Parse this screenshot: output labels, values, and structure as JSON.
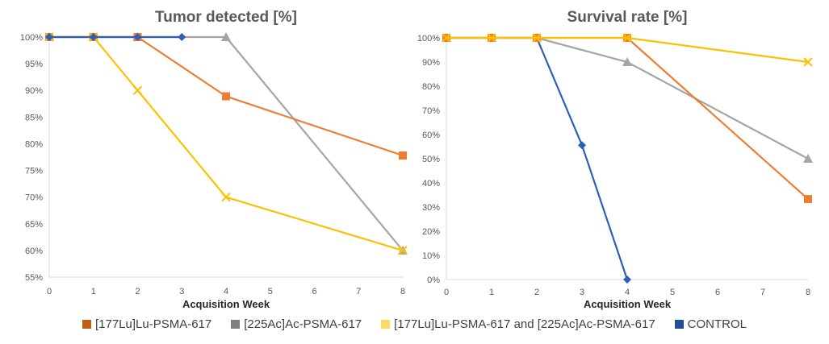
{
  "chart_data": [
    {
      "type": "line",
      "title": "Tumor detected [%]",
      "xlabel": "Acquisition Week",
      "ylabel": "",
      "xlim": [
        0,
        8
      ],
      "ylim": [
        55,
        100
      ],
      "x_ticks": [
        0,
        1,
        2,
        3,
        4,
        5,
        6,
        7,
        8
      ],
      "y_ticks": [
        55,
        60,
        65,
        70,
        75,
        80,
        85,
        90,
        95,
        100
      ],
      "y_tick_labels": [
        "55%",
        "60%",
        "65%",
        "70%",
        "75%",
        "80%",
        "85%",
        "90%",
        "95%",
        "100%"
      ],
      "grid": false,
      "series": [
        {
          "name": "[225Ac]Ac-PSMA-617",
          "color": "#A5A5A5",
          "marker": "triangle",
          "points": [
            [
              0,
              100
            ],
            [
              1,
              100
            ],
            [
              2,
              100
            ],
            [
              4,
              100
            ],
            [
              8,
              60
            ]
          ]
        },
        {
          "name": "[177Lu]Lu-PSMA-617",
          "color": "#ED7D31",
          "marker": "square",
          "points": [
            [
              0,
              100
            ],
            [
              1,
              100
            ],
            [
              2,
              100
            ],
            [
              4,
              88.9
            ],
            [
              8,
              77.8
            ]
          ]
        },
        {
          "name": "[177Lu]Lu-PSMA-617 and [225Ac]Ac-PSMA-617",
          "color": "#FFC000",
          "marker": "x",
          "points": [
            [
              0,
              100
            ],
            [
              1,
              100
            ],
            [
              2,
              90
            ],
            [
              4,
              70
            ],
            [
              8,
              60
            ]
          ]
        },
        {
          "name": "CONTROL",
          "color": "#2E5FB8",
          "marker": "diamond",
          "points": [
            [
              0,
              100
            ],
            [
              1,
              100
            ],
            [
              2,
              100
            ],
            [
              3,
              100
            ]
          ],
          "line_to_first": false
        }
      ]
    },
    {
      "type": "line",
      "title": "Survival rate [%]",
      "xlabel": "Acquisition Week",
      "ylabel": "",
      "xlim": [
        0,
        8
      ],
      "ylim": [
        0,
        100
      ],
      "x_ticks": [
        0,
        1,
        2,
        3,
        4,
        5,
        6,
        7,
        8
      ],
      "y_ticks": [
        0,
        10,
        20,
        30,
        40,
        50,
        60,
        70,
        80,
        90,
        100
      ],
      "y_tick_labels": [
        "0%",
        "10%",
        "20%",
        "30%",
        "40%",
        "50%",
        "60%",
        "70%",
        "80%",
        "90%",
        "100%"
      ],
      "grid": false,
      "series": [
        {
          "name": "CONTROL",
          "color": "#2E5FB8",
          "marker": "diamond",
          "points": [
            [
              0,
              100
            ],
            [
              1,
              100
            ],
            [
              2,
              100
            ],
            [
              3,
              55.6
            ],
            [
              4,
              0
            ]
          ]
        },
        {
          "name": "[225Ac]Ac-PSMA-617",
          "color": "#A5A5A5",
          "marker": "triangle",
          "points": [
            [
              0,
              100
            ],
            [
              1,
              100
            ],
            [
              2,
              100
            ],
            [
              4,
              90
            ],
            [
              8,
              50
            ]
          ]
        },
        {
          "name": "[177Lu]Lu-PSMA-617",
          "color": "#ED7D31",
          "marker": "square",
          "points": [
            [
              0,
              100
            ],
            [
              1,
              100
            ],
            [
              2,
              100
            ],
            [
              4,
              100
            ],
            [
              8,
              33.3
            ]
          ]
        },
        {
          "name": "[177Lu]Lu-PSMA-617 and [225Ac]Ac-PSMA-617",
          "color": "#FFC000",
          "marker": "x",
          "points": [
            [
              0,
              100
            ],
            [
              1,
              100
            ],
            [
              2,
              100
            ],
            [
              4,
              100
            ],
            [
              8,
              90
            ]
          ]
        }
      ]
    }
  ],
  "legend": {
    "position": "bottom",
    "items": [
      {
        "label": "[177Lu]Lu-PSMA-617",
        "color": "#C55A11"
      },
      {
        "label": "[225Ac]Ac-PSMA-617",
        "color": "#7F7F7F"
      },
      {
        "label": "[177Lu]Lu-PSMA-617 and [225Ac]Ac-PSMA-617",
        "color": "#FFD966"
      },
      {
        "label": "CONTROL",
        "color": "#1F4E9A"
      }
    ]
  }
}
